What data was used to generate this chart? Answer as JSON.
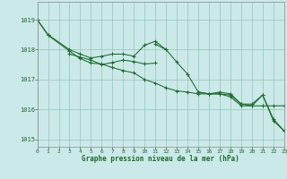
{
  "background_color": "#cce9e9",
  "grid_color": "#99ccbb",
  "line_color": "#1a6b2a",
  "xlabel": "Graphe pression niveau de la mer (hPa)",
  "ylim": [
    1014.75,
    1019.6
  ],
  "xlim": [
    0,
    23
  ],
  "yticks": [
    1015,
    1016,
    1017,
    1018,
    1019
  ],
  "xticks": [
    0,
    1,
    2,
    3,
    4,
    5,
    6,
    7,
    8,
    9,
    10,
    11,
    12,
    13,
    14,
    15,
    16,
    17,
    18,
    19,
    20,
    21,
    22,
    23
  ],
  "series": [
    {
      "x": [
        0,
        1,
        3,
        4,
        5,
        6,
        7,
        8,
        9,
        10,
        11,
        12
      ],
      "y": [
        1019.0,
        1018.5,
        1018.0,
        1017.85,
        1017.72,
        1017.78,
        1017.85,
        1017.85,
        1017.78,
        1018.15,
        1018.28,
        1018.0
      ]
    },
    {
      "x": [
        3,
        4,
        5,
        6,
        7,
        8,
        9,
        10,
        11
      ],
      "y": [
        1017.85,
        1017.75,
        1017.65,
        1017.5,
        1017.57,
        1017.65,
        1017.6,
        1017.52,
        1017.55
      ]
    },
    {
      "x": [
        0,
        1,
        3,
        4,
        5,
        6,
        7,
        8,
        9,
        10,
        11,
        12,
        13,
        14,
        15,
        16,
        17,
        18,
        19,
        20,
        21,
        22,
        23
      ],
      "y": [
        1019.0,
        1018.48,
        1017.95,
        1017.7,
        1017.55,
        1017.52,
        1017.4,
        1017.3,
        1017.22,
        1017.0,
        1016.88,
        1016.72,
        1016.62,
        1016.58,
        1016.52,
        1016.52,
        1016.58,
        1016.52,
        1016.18,
        1016.18,
        1016.48,
        1015.68,
        1015.28
      ]
    },
    {
      "x": [
        11,
        12,
        13,
        14,
        15,
        16,
        17,
        18,
        19,
        20,
        21,
        22,
        23
      ],
      "y": [
        1018.18,
        1018.0,
        1017.58,
        1017.18,
        1016.58,
        1016.52,
        1016.52,
        1016.42,
        1016.12,
        1016.12,
        1016.48,
        1015.62,
        1015.28
      ]
    },
    {
      "x": [
        15,
        16,
        17,
        18,
        19,
        20,
        21,
        22,
        23
      ],
      "y": [
        1016.58,
        1016.52,
        1016.52,
        1016.48,
        1016.18,
        1016.12,
        1016.12,
        1016.12,
        1016.12
      ]
    }
  ]
}
